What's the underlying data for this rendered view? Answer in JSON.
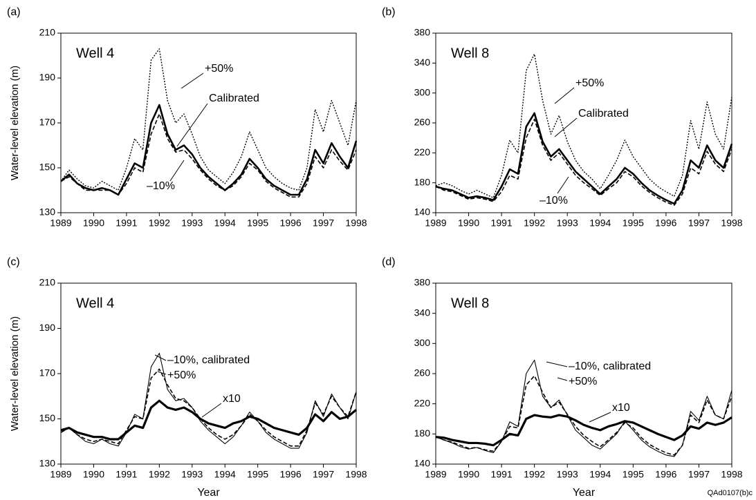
{
  "chart_data": [
    {
      "type": "line",
      "label": "(a)",
      "title": "Well 4",
      "ylabel": "Water-level elevation (m)",
      "x": [
        1989,
        1989.25,
        1989.5,
        1989.75,
        1990,
        1990.25,
        1990.5,
        1990.75,
        1991,
        1991.25,
        1991.5,
        1991.75,
        1992,
        1992.25,
        1992.5,
        1992.75,
        1993,
        1993.25,
        1993.5,
        1993.75,
        1994,
        1994.25,
        1994.5,
        1994.75,
        1995,
        1995.25,
        1995.5,
        1995.75,
        1996,
        1996.25,
        1996.5,
        1996.75,
        1997,
        1997.25,
        1997.5,
        1997.75,
        1998
      ],
      "xlim": [
        1989,
        1998
      ],
      "xticks": [
        1989,
        1990,
        1991,
        1992,
        1993,
        1994,
        1995,
        1996,
        1997,
        1998
      ],
      "ylim": [
        130,
        210
      ],
      "yticks": [
        130,
        150,
        170,
        190,
        210
      ],
      "series": [
        {
          "name": "+50%",
          "color": "#000000",
          "style": "dotted",
          "values": [
            144,
            149,
            145,
            142,
            141,
            144,
            142,
            140,
            150,
            163,
            158,
            198,
            203,
            180,
            170,
            174,
            165,
            155,
            149,
            146,
            143,
            148,
            155,
            166,
            158,
            150,
            146,
            143,
            141,
            140,
            150,
            176,
            166,
            180,
            170,
            160,
            180
          ]
        },
        {
          "name": "Calibrated",
          "color": "#000000",
          "style": "thick",
          "values": [
            144,
            147,
            143,
            141,
            140,
            141,
            140,
            138,
            145,
            152,
            150,
            170,
            178,
            165,
            158,
            160,
            156,
            150,
            146,
            143,
            140,
            143,
            147,
            154,
            150,
            145,
            142,
            140,
            138,
            138,
            145,
            158,
            152,
            161,
            155,
            150,
            162
          ]
        },
        {
          "name": "–10%",
          "color": "#000000",
          "style": "dashed",
          "values": [
            144,
            146,
            143,
            140,
            140,
            140,
            140,
            138,
            143,
            150,
            148,
            165,
            174,
            163,
            157,
            158,
            154,
            149,
            145,
            142,
            140,
            142,
            146,
            152,
            149,
            144,
            141,
            139,
            137,
            137,
            143,
            155,
            150,
            158,
            153,
            149,
            158
          ]
        }
      ]
    },
    {
      "type": "line",
      "label": "(b)",
      "title": "Well 8",
      "x": [
        1989,
        1989.25,
        1989.5,
        1989.75,
        1990,
        1990.25,
        1990.5,
        1990.75,
        1991,
        1991.25,
        1991.5,
        1991.75,
        1992,
        1992.25,
        1992.5,
        1992.75,
        1993,
        1993.25,
        1993.5,
        1993.75,
        1994,
        1994.25,
        1994.5,
        1994.75,
        1995,
        1995.25,
        1995.5,
        1995.75,
        1996,
        1996.25,
        1996.5,
        1996.75,
        1997,
        1997.25,
        1997.5,
        1997.75,
        1998
      ],
      "xlim": [
        1989,
        1998
      ],
      "xticks": [
        1989,
        1990,
        1991,
        1992,
        1993,
        1994,
        1995,
        1996,
        1997,
        1998
      ],
      "ylim": [
        140,
        380
      ],
      "yticks": [
        140,
        180,
        220,
        260,
        300,
        340,
        380
      ],
      "series": [
        {
          "name": "+50%",
          "color": "#000000",
          "style": "dotted",
          "values": [
            176,
            180,
            176,
            170,
            165,
            170,
            165,
            160,
            190,
            237,
            220,
            330,
            352,
            290,
            245,
            270,
            235,
            210,
            195,
            185,
            172,
            190,
            210,
            237,
            215,
            200,
            185,
            175,
            168,
            162,
            190,
            263,
            225,
            288,
            245,
            225,
            295
          ]
        },
        {
          "name": "Calibrated",
          "color": "#000000",
          "style": "thick",
          "values": [
            175,
            172,
            170,
            165,
            160,
            162,
            160,
            157,
            175,
            198,
            192,
            255,
            273,
            235,
            215,
            225,
            210,
            195,
            185,
            175,
            165,
            175,
            185,
            200,
            192,
            180,
            170,
            163,
            157,
            152,
            170,
            210,
            200,
            230,
            210,
            200,
            232
          ]
        },
        {
          "name": "–10%",
          "color": "#000000",
          "style": "dashed",
          "values": [
            175,
            170,
            168,
            163,
            158,
            160,
            158,
            155,
            168,
            190,
            185,
            240,
            265,
            230,
            210,
            220,
            205,
            190,
            180,
            172,
            163,
            172,
            180,
            195,
            188,
            176,
            167,
            160,
            154,
            150,
            165,
            200,
            192,
            222,
            205,
            195,
            225
          ]
        }
      ]
    },
    {
      "type": "line",
      "label": "(c)",
      "title": "Well 4",
      "ylabel": "Water-level elevation (m)",
      "xlabel": "Year",
      "x": [
        1989,
        1989.25,
        1989.5,
        1989.75,
        1990,
        1990.25,
        1990.5,
        1990.75,
        1991,
        1991.25,
        1991.5,
        1991.75,
        1992,
        1992.25,
        1992.5,
        1992.75,
        1993,
        1993.25,
        1993.5,
        1993.75,
        1994,
        1994.25,
        1994.5,
        1994.75,
        1995,
        1995.25,
        1995.5,
        1995.75,
        1996,
        1996.25,
        1996.5,
        1996.75,
        1997,
        1997.25,
        1997.5,
        1997.75,
        1998
      ],
      "xlim": [
        1989,
        1998
      ],
      "xticks": [
        1989,
        1990,
        1991,
        1992,
        1993,
        1994,
        1995,
        1996,
        1997,
        1998
      ],
      "ylim": [
        130,
        210
      ],
      "yticks": [
        130,
        150,
        170,
        190,
        210
      ],
      "series": [
        {
          "name": "–10%, calibrated",
          "color": "#000000",
          "style": "solid",
          "values": [
            144,
            146,
            143,
            140,
            139,
            141,
            139,
            138,
            144,
            152,
            150,
            173,
            179,
            163,
            158,
            159,
            155,
            149,
            145,
            142,
            139,
            142,
            147,
            153,
            149,
            144,
            141,
            139,
            137,
            137,
            144,
            158,
            151,
            161,
            155,
            150,
            162
          ]
        },
        {
          "name": "+50%",
          "color": "#000000",
          "style": "dashed",
          "values": [
            144,
            146,
            143,
            141,
            140,
            141,
            140,
            139,
            145,
            151,
            150,
            168,
            172,
            165,
            159,
            158,
            155,
            150,
            146,
            143,
            141,
            143,
            147,
            152,
            149,
            145,
            142,
            140,
            138,
            138,
            145,
            157,
            152,
            160,
            155,
            151,
            162
          ]
        },
        {
          "name": "x10",
          "color": "#000000",
          "style": "marked",
          "values": [
            145,
            146,
            144,
            143,
            142,
            142,
            141,
            141,
            144,
            147,
            146,
            155,
            158,
            155,
            154,
            155,
            153,
            150,
            148,
            147,
            146,
            148,
            149,
            151,
            150,
            148,
            146,
            145,
            144,
            143,
            146,
            152,
            149,
            153,
            150,
            151,
            154
          ]
        }
      ]
    },
    {
      "type": "line",
      "label": "(d)",
      "title": "Well 8",
      "xlabel": "Year",
      "x": [
        1989,
        1989.25,
        1989.5,
        1989.75,
        1990,
        1990.25,
        1990.5,
        1990.75,
        1991,
        1991.25,
        1991.5,
        1991.75,
        1992,
        1992.25,
        1992.5,
        1992.75,
        1993,
        1993.25,
        1993.5,
        1993.75,
        1994,
        1994.25,
        1994.5,
        1994.75,
        1995,
        1995.25,
        1995.5,
        1995.75,
        1996,
        1996.25,
        1996.5,
        1996.75,
        1997,
        1997.25,
        1997.5,
        1997.75,
        1998
      ],
      "xlim": [
        1989,
        1998
      ],
      "xticks": [
        1989,
        1990,
        1991,
        1992,
        1993,
        1994,
        1995,
        1996,
        1997,
        1998
      ],
      "ylim": [
        140,
        380
      ],
      "yticks": [
        140,
        180,
        220,
        260,
        300,
        340,
        380
      ],
      "series": [
        {
          "name": "–10%, calibrated",
          "color": "#000000",
          "style": "solid",
          "values": [
            176,
            172,
            168,
            163,
            160,
            162,
            158,
            155,
            170,
            196,
            190,
            260,
            278,
            230,
            215,
            225,
            205,
            185,
            175,
            165,
            160,
            170,
            180,
            197,
            185,
            172,
            163,
            157,
            152,
            150,
            165,
            210,
            198,
            230,
            205,
            200,
            238
          ]
        },
        {
          "name": "+50%",
          "color": "#000000",
          "style": "dashed",
          "values": [
            176,
            172,
            169,
            165,
            161,
            162,
            159,
            157,
            170,
            190,
            188,
            245,
            257,
            235,
            215,
            222,
            206,
            190,
            178,
            170,
            163,
            172,
            182,
            195,
            188,
            175,
            166,
            160,
            155,
            152,
            165,
            205,
            195,
            225,
            205,
            200,
            230
          ]
        },
        {
          "name": "x10",
          "color": "#000000",
          "style": "marked",
          "values": [
            176,
            175,
            172,
            170,
            168,
            168,
            167,
            165,
            172,
            180,
            178,
            200,
            205,
            203,
            202,
            205,
            203,
            198,
            192,
            188,
            185,
            190,
            193,
            197,
            195,
            190,
            185,
            180,
            176,
            172,
            178,
            190,
            187,
            195,
            192,
            195,
            202
          ]
        }
      ]
    }
  ],
  "footer": "QAd0107(b)c"
}
